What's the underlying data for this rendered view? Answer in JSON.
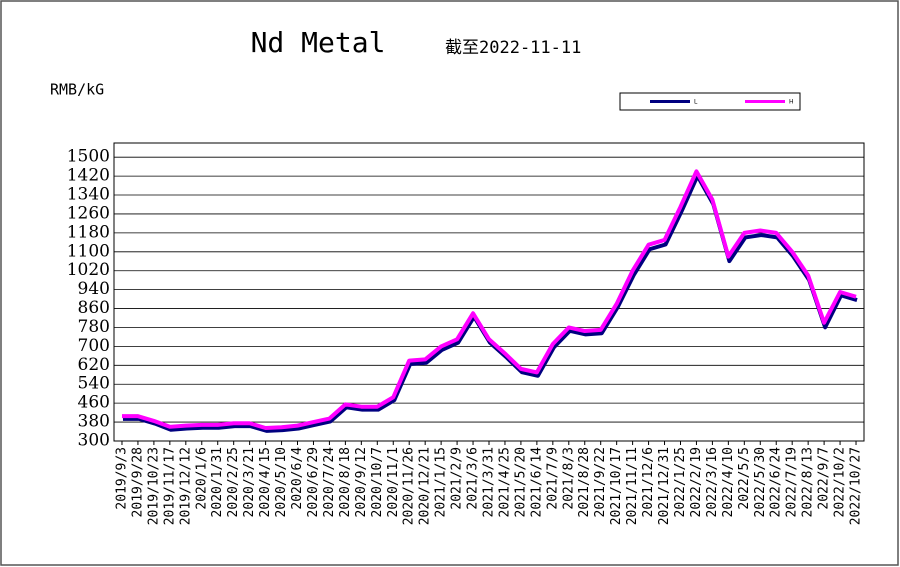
{
  "chart_data": {
    "type": "line",
    "title": "Nd Metal",
    "subtitle": "截至2022-11-11",
    "y_label": "RMB/kG",
    "categories": [
      "2019/9/3",
      "2019/9/28",
      "2019/10/23",
      "2019/11/17",
      "2019/12/12",
      "2020/1/6",
      "2020/1/31",
      "2020/2/25",
      "2020/3/21",
      "2020/4/15",
      "2020/5/10",
      "2020/6/4",
      "2020/6/29",
      "2020/7/24",
      "2020/8/18",
      "2020/9/12",
      "2020/10/7",
      "2020/11/1",
      "2020/11/26",
      "2020/12/21",
      "2021/1/15",
      "2021/2/9",
      "2021/3/6",
      "2021/3/31",
      "2021/4/25",
      "2021/5/20",
      "2021/6/14",
      "2021/7/9",
      "2021/8/3",
      "2021/8/28",
      "2021/9/22",
      "2021/10/17",
      "2021/11/11",
      "2021/12/6",
      "2021/12/31",
      "2022/1/25",
      "2022/2/19",
      "2022/3/16",
      "2022/4/10",
      "2022/5/5",
      "2022/5/30",
      "2022/6/24",
      "2022/7/19",
      "2022/8/13",
      "2022/9/7",
      "2022/10/2",
      "2022/10/27"
    ],
    "series": [
      {
        "name": "L",
        "color": "#000080",
        "values": [
          398,
          398,
          378,
          352,
          357,
          360,
          360,
          367,
          367,
          347,
          350,
          357,
          372,
          387,
          447,
          437,
          437,
          477,
          630,
          635,
          690,
          720,
          830,
          720,
          660,
          595,
          580,
          700,
          770,
          755,
          760,
          870,
          1005,
          1115,
          1135,
          1275,
          1425,
          1305,
          1065,
          1165,
          1175,
          1165,
          1085,
          985,
          785,
          920,
          900
        ]
      },
      {
        "name": "H",
        "color": "#ff00ff",
        "values": [
          405,
          405,
          385,
          360,
          365,
          368,
          368,
          375,
          375,
          355,
          358,
          365,
          380,
          395,
          455,
          445,
          445,
          485,
          640,
          645,
          700,
          730,
          840,
          730,
          670,
          605,
          590,
          710,
          780,
          765,
          770,
          880,
          1020,
          1130,
          1150,
          1290,
          1440,
          1320,
          1080,
          1180,
          1190,
          1180,
          1100,
          1000,
          800,
          930,
          910
        ]
      }
    ],
    "ylim": [
      300,
      1560
    ],
    "yticks": [
      300,
      380,
      460,
      540,
      620,
      700,
      780,
      860,
      940,
      1020,
      1100,
      1180,
      1260,
      1340,
      1420,
      1500
    ],
    "grid": true,
    "legend": "top-right"
  }
}
